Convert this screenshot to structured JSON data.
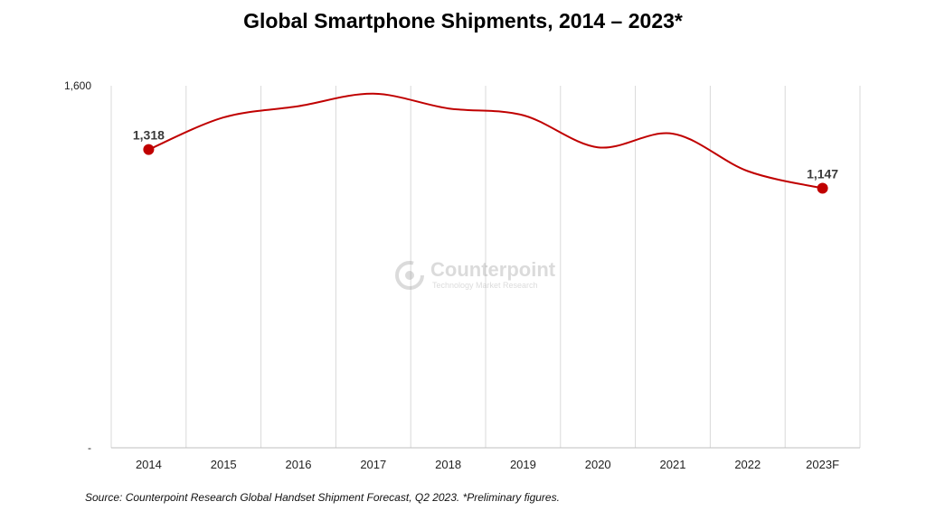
{
  "chart_data": {
    "type": "line",
    "title": "Global Smartphone Shipments, 2014 – 2023*",
    "xlabel": "",
    "ylabel": "",
    "categories": [
      "2014",
      "2015",
      "2016",
      "2017",
      "2018",
      "2019",
      "2020",
      "2021",
      "2022",
      "2023F"
    ],
    "series": [
      {
        "name": "Shipments",
        "values": [
          1318,
          1460,
          1510,
          1565,
          1500,
          1470,
          1328,
          1388,
          1223,
          1147
        ]
      }
    ],
    "ylim": [
      0,
      1600
    ],
    "y_ticks": [
      "-",
      "1,600"
    ],
    "data_labels": [
      {
        "index": 0,
        "text": "1,318"
      },
      {
        "index": 9,
        "text": "1,147"
      }
    ],
    "grid": "vertical",
    "line_color": "#c00000"
  },
  "watermark": {
    "name": "Counterpoint",
    "tagline": "Technology Market Research"
  },
  "source": "Source:  Counterpoint Research Global Handset Shipment Forecast, Q2 2023. *Preliminary figures."
}
